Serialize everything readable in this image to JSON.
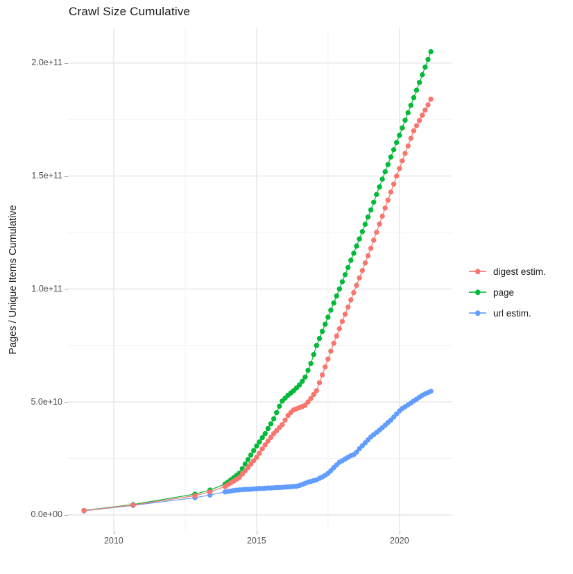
{
  "title": "Crawl Size Cumulative",
  "y_axis": {
    "label": "Pages / Unique Items Cumulative",
    "tick_labels": [
      "0.0e+00",
      "5.0e+10",
      "1.0e+11",
      "1.5e+11",
      "2.0e+11"
    ]
  },
  "x_axis": {
    "tick_labels": [
      "2010",
      "2015",
      "2020"
    ]
  },
  "legend": [
    {
      "label": "digest estim.",
      "color": "#F8766D"
    },
    {
      "label": "page",
      "color": "#00BA38"
    },
    {
      "label": "url estim.",
      "color": "#619CFF"
    }
  ],
  "style": {
    "background": "#FFFFFF",
    "grid_major_color": "#E6E6E6",
    "grid_minor_color": "#F2F2F2",
    "tick_text_color": "#4D4D4D"
  },
  "chart_data": {
    "type": "line",
    "title": "Crawl Size Cumulative",
    "xlabel": "",
    "ylabel": "Pages / Unique Items Cumulative",
    "grid": true,
    "legend_position": "right",
    "y_unit": 1000000000.0,
    "y_unit_note": "values below are in billions (1e9); axis shows 0.0e+00 to 2.0e+11",
    "x_domain": [
      2008.4,
      2021.85
    ],
    "y_domain": [
      -7.1,
      215.3
    ],
    "x_major_ticks": [
      2010,
      2015,
      2020
    ],
    "x_minor_ticks": [
      2012.5,
      2017.5
    ],
    "y_major_ticks": [
      0,
      50,
      100,
      150,
      200
    ],
    "y_minor_ticks": [
      25,
      75,
      125,
      175
    ],
    "x": [
      2008.96,
      2010.68,
      2012.84,
      2013.37,
      2013.9,
      2014.0,
      2014.1,
      2014.2,
      2014.3,
      2014.4,
      2014.5,
      2014.6,
      2014.7,
      2014.8,
      2014.9,
      2015.0,
      2015.1,
      2015.2,
      2015.3,
      2015.4,
      2015.5,
      2015.6,
      2015.7,
      2015.8,
      2015.9,
      2016.0,
      2016.1,
      2016.2,
      2016.3,
      2016.4,
      2016.5,
      2016.6,
      2016.7,
      2016.8,
      2016.9,
      2017.0,
      2017.1,
      2017.2,
      2017.3,
      2017.4,
      2017.5,
      2017.6,
      2017.7,
      2017.8,
      2017.9,
      2018.0,
      2018.1,
      2018.2,
      2018.3,
      2018.4,
      2018.5,
      2018.6,
      2018.7,
      2018.8,
      2018.9,
      2019.0,
      2019.1,
      2019.2,
      2019.3,
      2019.4,
      2019.5,
      2019.6,
      2019.7,
      2019.8,
      2019.9,
      2020.0,
      2020.1,
      2020.2,
      2020.3,
      2020.4,
      2020.5,
      2020.6,
      2020.7,
      2020.8,
      2020.9,
      2021.0,
      2021.1
    ],
    "series": [
      {
        "name": "digest estim.",
        "color": "#F8766D",
        "values": [
          1.9,
          4.4,
          8.5,
          10.2,
          12.6,
          13.4,
          14.2,
          15.0,
          15.8,
          16.6,
          18.1,
          19.5,
          21.0,
          22.5,
          24.0,
          25.5,
          27.3,
          29.2,
          31.0,
          32.7,
          34.3,
          36.0,
          37.3,
          38.7,
          40.0,
          42.0,
          44.0,
          45.3,
          46.5,
          47.0,
          47.5,
          48.0,
          48.5,
          50.0,
          51.5,
          53.3,
          55.0,
          58.5,
          62.0,
          65.5,
          69.0,
          72.5,
          76.0,
          79.2,
          82.4,
          85.6,
          88.8,
          92.0,
          95.2,
          98.4,
          101.6,
          104.9,
          108.2,
          111.5,
          114.7,
          118.0,
          121.6,
          125.1,
          128.7,
          132.2,
          135.8,
          139.3,
          142.9,
          146.4,
          150.0,
          153.3,
          156.7,
          160.0,
          163.3,
          166.7,
          170.0,
          172.3,
          174.6,
          176.9,
          179.2,
          181.5,
          184.0
        ]
      },
      {
        "name": "page",
        "color": "#00BA38",
        "values": [
          2.0,
          4.6,
          9.2,
          11.0,
          13.7,
          14.6,
          15.5,
          16.5,
          17.5,
          18.5,
          20.5,
          22.5,
          24.5,
          26.5,
          28.5,
          30.5,
          32.3,
          34.2,
          36.0,
          38.2,
          40.3,
          42.5,
          45.3,
          48.1,
          50.4,
          51.7,
          53.0,
          54.0,
          55.0,
          56.2,
          57.5,
          59.2,
          61.0,
          64.0,
          67.0,
          71.0,
          75.0,
          78.1,
          81.2,
          84.4,
          87.5,
          90.6,
          93.8,
          96.9,
          100.0,
          103.2,
          106.3,
          109.5,
          112.7,
          115.8,
          119.0,
          122.2,
          125.4,
          128.6,
          131.8,
          135.0,
          138.4,
          141.8,
          145.2,
          148.6,
          151.9,
          155.1,
          158.4,
          161.6,
          164.8,
          168.0,
          171.3,
          174.7,
          178.0,
          181.3,
          184.7,
          188.0,
          191.4,
          194.8,
          198.2,
          201.6,
          205.0
        ]
      },
      {
        "name": "url estim.",
        "color": "#619CFF",
        "values": [
          1.8,
          4.2,
          7.6,
          8.8,
          10.2,
          10.4,
          10.6,
          10.8,
          11.0,
          11.1,
          11.2,
          11.3,
          11.3,
          11.4,
          11.5,
          11.6,
          11.7,
          11.7,
          11.8,
          11.9,
          11.9,
          12.0,
          12.1,
          12.1,
          12.2,
          12.3,
          12.4,
          12.5,
          12.6,
          12.7,
          13.0,
          13.5,
          14.0,
          14.5,
          14.8,
          15.2,
          15.5,
          16.2,
          16.8,
          17.5,
          18.4,
          19.6,
          20.9,
          22.1,
          23.3,
          24.0,
          24.8,
          25.5,
          26.2,
          26.7,
          27.8,
          29.3,
          30.6,
          31.9,
          33.2,
          34.5,
          35.5,
          36.5,
          37.5,
          38.6,
          39.7,
          40.9,
          42.0,
          43.3,
          44.7,
          46.0,
          47.1,
          47.9,
          48.7,
          49.5,
          50.4,
          51.2,
          52.1,
          53.0,
          53.6,
          54.1,
          54.7
        ]
      }
    ]
  }
}
